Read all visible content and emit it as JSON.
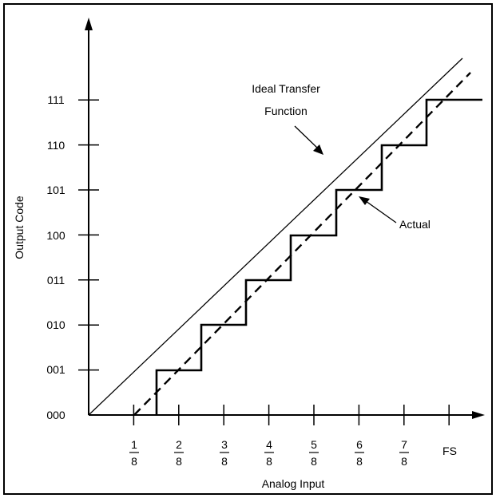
{
  "y_axis": {
    "title": "Output Code",
    "codes": [
      "000",
      "001",
      "010",
      "011",
      "100",
      "101",
      "110",
      "111"
    ]
  },
  "x_axis": {
    "title": "Analog Input",
    "fractions": [
      {
        "num": "1",
        "den": "8"
      },
      {
        "num": "2",
        "den": "8"
      },
      {
        "num": "3",
        "den": "8"
      },
      {
        "num": "4",
        "den": "8"
      },
      {
        "num": "5",
        "den": "8"
      },
      {
        "num": "6",
        "den": "8"
      },
      {
        "num": "7",
        "den": "8"
      }
    ],
    "end_label": "FS"
  },
  "annotations": {
    "ideal_line1": "Ideal Transfer",
    "ideal_line2": "Function",
    "actual": "Actual"
  }
}
